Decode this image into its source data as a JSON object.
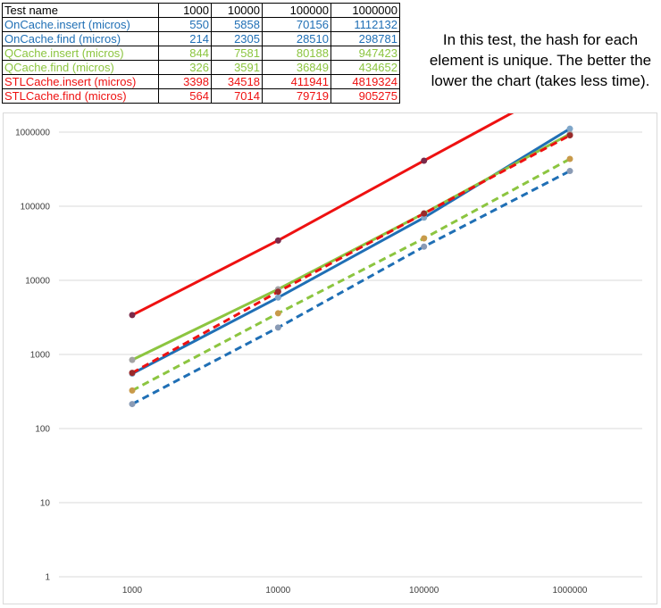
{
  "table": {
    "header": [
      "Test name",
      "1000",
      "10000",
      "100000",
      "1000000"
    ],
    "rows": [
      {
        "name": "OnCache.insert (micros)",
        "values": [
          "550",
          "5858",
          "70156",
          "1112132"
        ],
        "color": "#1f6fb5"
      },
      {
        "name": "OnCache.find (micros)",
        "values": [
          "214",
          "2305",
          "28510",
          "298781"
        ],
        "color": "#1f6fb5"
      },
      {
        "name": "QCache.insert (micros)",
        "values": [
          "844",
          "7581",
          "80188",
          "947423"
        ],
        "color": "#8cc540"
      },
      {
        "name": "QCache.find (micros)",
        "values": [
          "326",
          "3591",
          "36849",
          "434652"
        ],
        "color": "#8cc540"
      },
      {
        "name": "STLCache.insert (micros)",
        "values": [
          "3398",
          "34518",
          "411941",
          "4819324"
        ],
        "color": "#ee1111"
      },
      {
        "name": "STLCache.find (micros)",
        "values": [
          "564",
          "7014",
          "79719",
          "905275"
        ],
        "color": "#ee1111"
      }
    ]
  },
  "note": "In this test, the hash for each element is unique. The better the lower the chart (takes less time).",
  "chart_data": {
    "type": "line",
    "title": "",
    "xlabel": "",
    "ylabel": "",
    "x": [
      1000,
      10000,
      100000,
      1000000
    ],
    "x_tick_labels": [
      "1000",
      "10000",
      "100000",
      "1000000"
    ],
    "y_scale": "log",
    "ylim": [
      1,
      1000000
    ],
    "y_tick_labels": [
      "1",
      "10",
      "100",
      "1000",
      "10000",
      "100000",
      "1000000"
    ],
    "grid": true,
    "legend": "none",
    "series": [
      {
        "values": [
          550,
          5858,
          70156,
          1112132
        ],
        "color": "#1f6fb5",
        "dashed": false,
        "marker_color": "#7fa6c9"
      },
      {
        "values": [
          214,
          2305,
          28510,
          298781
        ],
        "color": "#1f6fb5",
        "dashed": true,
        "marker_color": "#8a9bb5"
      },
      {
        "values": [
          844,
          7581,
          80188,
          947423
        ],
        "color": "#8cc540",
        "dashed": false,
        "marker_color": "#a3a3a3"
      },
      {
        "values": [
          326,
          3591,
          36849,
          434652
        ],
        "color": "#8cc540",
        "dashed": true,
        "marker_color": "#c89a4a"
      },
      {
        "values": [
          3398,
          34518,
          411941,
          4819324
        ],
        "color": "#ee1111",
        "dashed": false,
        "marker_color": "#7a2a4a"
      },
      {
        "values": [
          564,
          7014,
          79719,
          905275
        ],
        "color": "#ee1111",
        "dashed": true,
        "marker_color": "#9a2a2a"
      }
    ]
  }
}
